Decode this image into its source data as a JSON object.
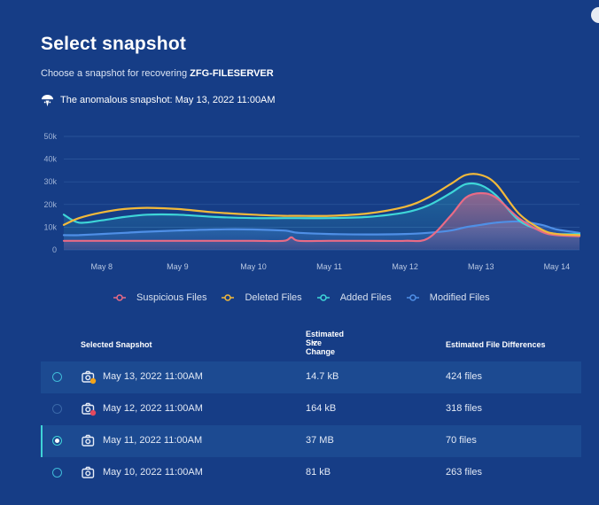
{
  "page": {
    "title": "Select snapshot",
    "subtitle_prefix": "Choose a snapshot for recovering",
    "server_name": "ZFG-FILESERVER",
    "anomaly_text": "The anomalous snapshot: May 13, 2022 11:00AM"
  },
  "colors": {
    "background": "#163d86",
    "suspicious": "#e96b86",
    "deleted": "#f2b93a",
    "added": "#3ed6d8",
    "modified": "#4f8fe6"
  },
  "chart_data": {
    "type": "line",
    "y_ticks": [
      "0",
      "10k",
      "20k",
      "30k",
      "40k",
      "50k"
    ],
    "ylim": [
      0,
      50000
    ],
    "x_labels": [
      "May 8",
      "May 9",
      "May 10",
      "May 11",
      "May 12",
      "May 13",
      "May 14"
    ],
    "x": [
      7.5,
      7.7,
      8.0,
      8.3,
      8.6,
      9.0,
      9.5,
      10.0,
      10.4,
      10.5,
      10.6,
      11.0,
      11.5,
      12.0,
      12.3,
      12.6,
      12.8,
      13.0,
      13.2,
      13.5,
      13.8,
      14.0,
      14.3
    ],
    "series": [
      {
        "name": "Suspicious Files",
        "values": [
          4000,
          4000,
          4000,
          4000,
          4000,
          4000,
          4000,
          4000,
          4000,
          5500,
          4000,
          4000,
          4000,
          4000,
          5000,
          15000,
          23000,
          25000,
          23000,
          14000,
          8000,
          6500,
          6000
        ]
      },
      {
        "name": "Deleted Files",
        "values": [
          11000,
          14000,
          16500,
          18000,
          18500,
          18000,
          16500,
          15500,
          15000,
          15000,
          15000,
          15000,
          16000,
          19000,
          23000,
          29000,
          33000,
          33000,
          29000,
          16000,
          9000,
          7000,
          6500
        ]
      },
      {
        "name": "Added Files",
        "values": [
          15500,
          12000,
          13000,
          14500,
          15500,
          15500,
          14500,
          14000,
          14000,
          14000,
          14000,
          14000,
          14500,
          16500,
          19500,
          25000,
          29000,
          28500,
          24000,
          13000,
          8500,
          7000,
          7000
        ]
      },
      {
        "name": "Modified Files",
        "values": [
          6500,
          6500,
          7000,
          7500,
          8000,
          8500,
          9000,
          9000,
          8500,
          8000,
          7500,
          7000,
          6800,
          7000,
          7500,
          8500,
          10000,
          11000,
          12000,
          12500,
          11000,
          9000,
          7500
        ]
      }
    ],
    "legend": [
      "Suspicious Files",
      "Deleted Files",
      "Added Files",
      "Modified Files"
    ],
    "legend_position": "bottom"
  },
  "table": {
    "columns": {
      "snapshot": "Selected Snapshot",
      "size": "Estimated Size Change",
      "size_sort_icon": "chevron-down-icon",
      "diff": "Estimated File Differences"
    },
    "rows": [
      {
        "date": "May 13, 2022 11:00AM",
        "size": "14.7 kB",
        "files": "424 files",
        "badge": "warning",
        "badge_color": "#f2a31a",
        "selected": false
      },
      {
        "date": "May 12, 2022 11:00AM",
        "size": "164 kB",
        "files": "318 files",
        "badge": "alert",
        "badge_color": "#e4495e",
        "selected": false
      },
      {
        "date": "May 11, 2022 11:00AM",
        "size": "37 MB",
        "files": "70 files",
        "badge": "",
        "badge_color": "",
        "selected": true
      },
      {
        "date": "May 10, 2022 11:00AM",
        "size": "81 kB",
        "files": "263 files",
        "badge": "",
        "badge_color": "",
        "selected": false
      }
    ]
  }
}
